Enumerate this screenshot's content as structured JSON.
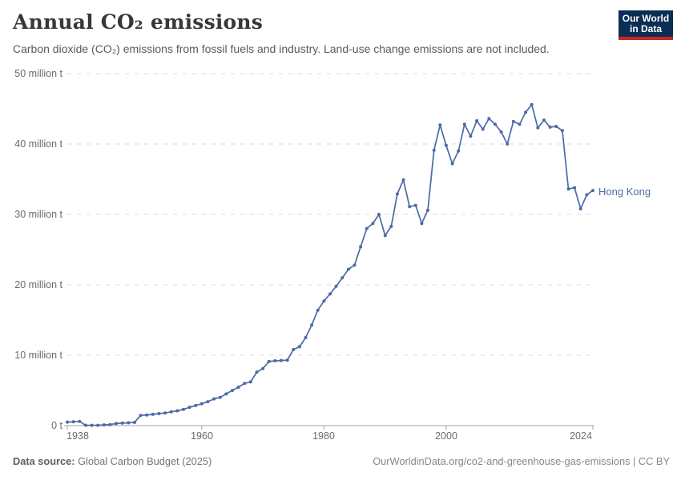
{
  "header": {
    "title": "Annual CO₂ emissions",
    "subtitle": "Carbon dioxide (CO₂) emissions from fossil fuels and industry. Land-use change emissions are not included."
  },
  "logo": {
    "line1": "Our World",
    "line2": "in Data",
    "bg_color": "#0b2e55",
    "accent_color": "#c8291e"
  },
  "chart_data": {
    "type": "line",
    "title": "Annual CO₂ emissions",
    "xlabel": "",
    "ylabel": "",
    "xlim": [
      1938,
      2024
    ],
    "ylim": [
      0,
      50
    ],
    "grid": "horizontal dashed",
    "legend_position": "end-of-line label",
    "xtick_values": [
      1938,
      1960,
      1980,
      2000,
      2024
    ],
    "xtick_labels": [
      "1938",
      "1960",
      "1980",
      "2000",
      "2024"
    ],
    "ytick_values": [
      0,
      10,
      20,
      30,
      40,
      50
    ],
    "ytick_labels": [
      "0 t",
      "10 million t",
      "20 million t",
      "30 million t",
      "40 million t",
      "50 million t"
    ],
    "unit": "million tonnes CO₂",
    "series": [
      {
        "name": "Hong Kong",
        "color": "#4b6aa5",
        "x": [
          1938,
          1939,
          1940,
          1941,
          1942,
          1943,
          1944,
          1945,
          1946,
          1947,
          1948,
          1949,
          1950,
          1951,
          1952,
          1953,
          1954,
          1955,
          1956,
          1957,
          1958,
          1959,
          1960,
          1961,
          1962,
          1963,
          1964,
          1965,
          1966,
          1967,
          1968,
          1969,
          1970,
          1971,
          1972,
          1973,
          1974,
          1975,
          1976,
          1977,
          1978,
          1979,
          1980,
          1981,
          1982,
          1983,
          1984,
          1985,
          1986,
          1987,
          1988,
          1989,
          1990,
          1991,
          1992,
          1993,
          1994,
          1995,
          1996,
          1997,
          1998,
          1999,
          2000,
          2001,
          2002,
          2003,
          2004,
          2005,
          2006,
          2007,
          2008,
          2009,
          2010,
          2011,
          2012,
          2013,
          2014,
          2015,
          2016,
          2017,
          2018,
          2019,
          2020,
          2021,
          2022,
          2023,
          2024
        ],
        "values": [
          0.5,
          0.55,
          0.6,
          0.05,
          0.04,
          0.04,
          0.1,
          0.15,
          0.3,
          0.35,
          0.4,
          0.45,
          1.45,
          1.5,
          1.6,
          1.7,
          1.8,
          1.95,
          2.1,
          2.3,
          2.6,
          2.85,
          3.1,
          3.4,
          3.8,
          4.0,
          4.5,
          5.0,
          5.45,
          6.0,
          6.2,
          7.6,
          8.1,
          9.1,
          9.2,
          9.25,
          9.3,
          10.8,
          11.2,
          12.5,
          14.3,
          16.4,
          17.7,
          18.7,
          19.8,
          21.0,
          22.2,
          22.8,
          25.4,
          28.0,
          28.7,
          30.0,
          27.0,
          28.3,
          32.9,
          34.9,
          31.1,
          31.3,
          28.7,
          30.6,
          39.1,
          42.7,
          39.8,
          37.2,
          39.0,
          42.8,
          41.1,
          43.3,
          42.1,
          43.6,
          42.8,
          41.7,
          40.0,
          43.2,
          42.8,
          44.5,
          45.6,
          42.3,
          43.4,
          42.4,
          42.5,
          41.9,
          33.6,
          33.8,
          30.8,
          32.8,
          33.4
        ]
      }
    ]
  },
  "footer": {
    "source_label": "Data source:",
    "source_value": " Global Carbon Budget (2025)",
    "credit": "OurWorldinData.org/co2-and-greenhouse-gas-emissions | CC BY"
  }
}
